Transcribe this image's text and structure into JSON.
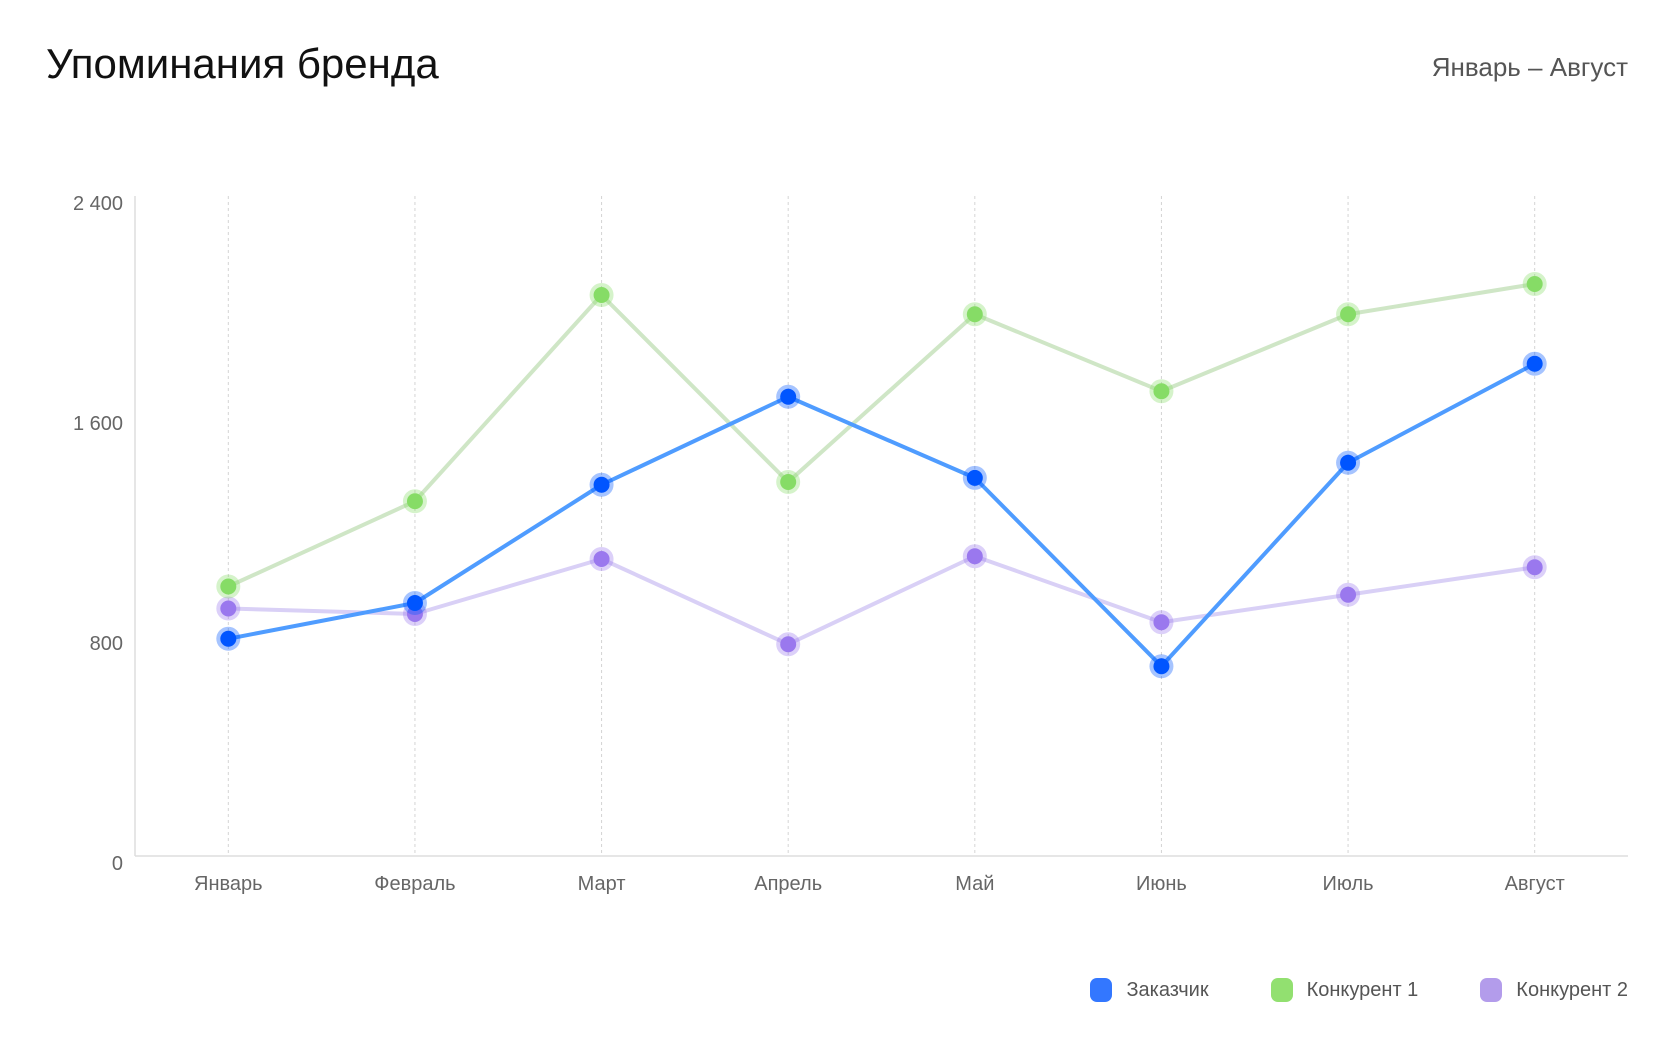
{
  "chart_data": {
    "type": "line",
    "title": "Упоминания бренда",
    "subtitle": "Январь – Август",
    "xlabel": "",
    "ylabel": "",
    "categories": [
      "Январь",
      "Февраль",
      "Март",
      "Апрель",
      "Май",
      "Июнь",
      "Июль",
      "Август"
    ],
    "ylim": [
      0,
      2400
    ],
    "yticks": [
      0,
      800,
      1600,
      2400
    ],
    "ytick_labels": [
      "0",
      "800",
      "1 600",
      "2 400"
    ],
    "grid": "vertical dotted",
    "legend_position": "bottom-right",
    "series": [
      {
        "name": "Заказчик",
        "color": "#3377ff",
        "line_color": "#4f9cff",
        "dot_color": "#0055ff",
        "values": [
          790,
          920,
          1350,
          1670,
          1375,
          690,
          1430,
          1790
        ]
      },
      {
        "name": "Конкурент 1",
        "color": "#92e070",
        "line_color": "#cfe6c6",
        "dot_color": "#86dc66",
        "values": [
          980,
          1290,
          2040,
          1360,
          1970,
          1690,
          1970,
          2080
        ]
      },
      {
        "name": "Конкурент 2",
        "color": "#b39ceb",
        "line_color": "#d9d0f6",
        "dot_color": "#9a78ee",
        "values": [
          900,
          880,
          1080,
          770,
          1090,
          850,
          950,
          1050
        ]
      }
    ]
  }
}
